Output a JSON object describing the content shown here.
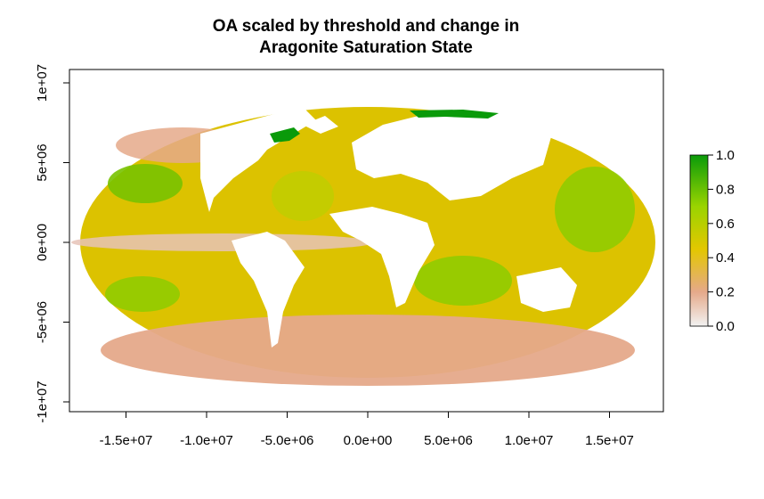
{
  "chart_data": {
    "type": "heatmap",
    "title_line1": "OA scaled by threshold and change in",
    "title_line2": "Aragonite Saturation State",
    "xlabel": "",
    "ylabel": "",
    "xlim": [
      -18000000,
      18000000
    ],
    "ylim": [
      -10000000,
      10000000
    ],
    "x_ticks": [
      -15000000,
      -10000000,
      -5000000,
      0,
      5000000,
      10000000,
      15000000
    ],
    "x_tick_labels": [
      "-1.5e+07",
      "-1.0e+07",
      "-5.0e+06",
      "0.0e+00",
      "5.0e+06",
      "1.0e+07",
      "1.5e+07"
    ],
    "y_ticks": [
      -10000000,
      -5000000,
      0,
      5000000,
      10000000
    ],
    "y_tick_labels": [
      "-1e+07",
      "-5e+06",
      "0e+00",
      "5e+06",
      "1e+07"
    ],
    "projection": "Mollweide",
    "colorbar": {
      "range": [
        0.0,
        1.0
      ],
      "ticks": [
        0.0,
        0.2,
        0.4,
        0.6,
        0.8,
        1.0
      ],
      "tick_labels": [
        "0.0",
        "0.2",
        "0.4",
        "0.6",
        "0.8",
        "1.0"
      ],
      "colors": [
        "#f2f2f2",
        "#e5a98a",
        "#e3c700",
        "#9ad400",
        "#0a9a0a"
      ]
    }
  }
}
